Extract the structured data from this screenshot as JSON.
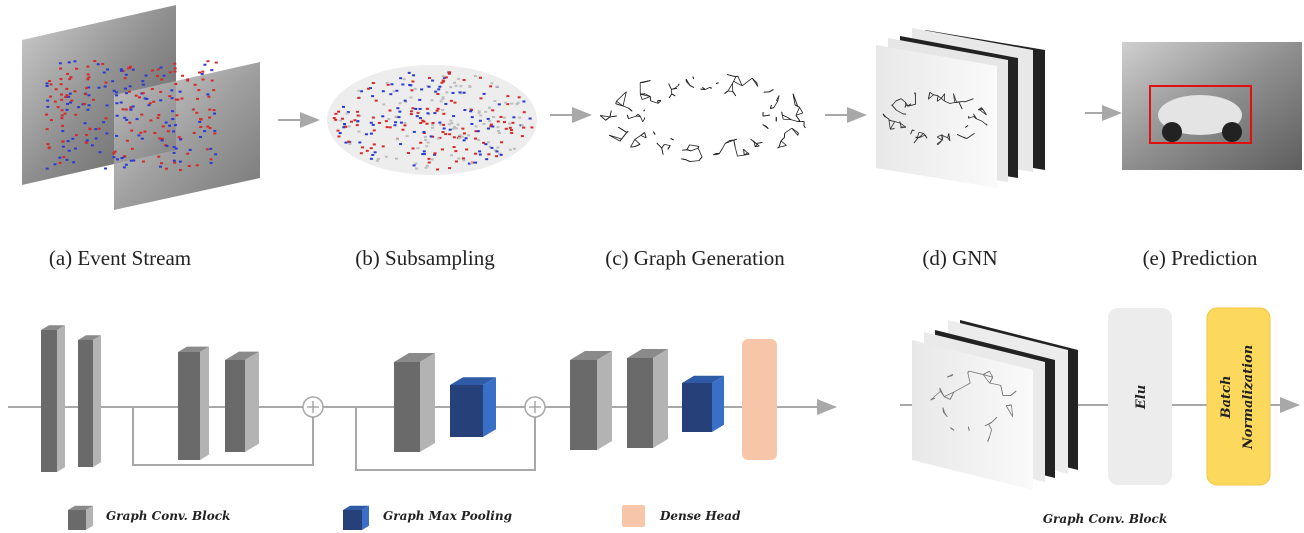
{
  "panels": [
    {
      "caption": "(a) Event Stream"
    },
    {
      "caption": "(b) Subsampling"
    },
    {
      "caption": "(c) Graph Generation"
    },
    {
      "caption": "(d) GNN"
    },
    {
      "caption": "(e) Prediction"
    }
  ],
  "legend": [
    {
      "label": "Graph Conv. Block"
    },
    {
      "label": "Graph Max Pooling"
    },
    {
      "label": "Dense Head"
    }
  ],
  "block_detail": {
    "elu": "Elu",
    "batch_norm_lines": [
      "Batch",
      "Normalization"
    ],
    "caption": "Graph Conv. Block"
  }
}
